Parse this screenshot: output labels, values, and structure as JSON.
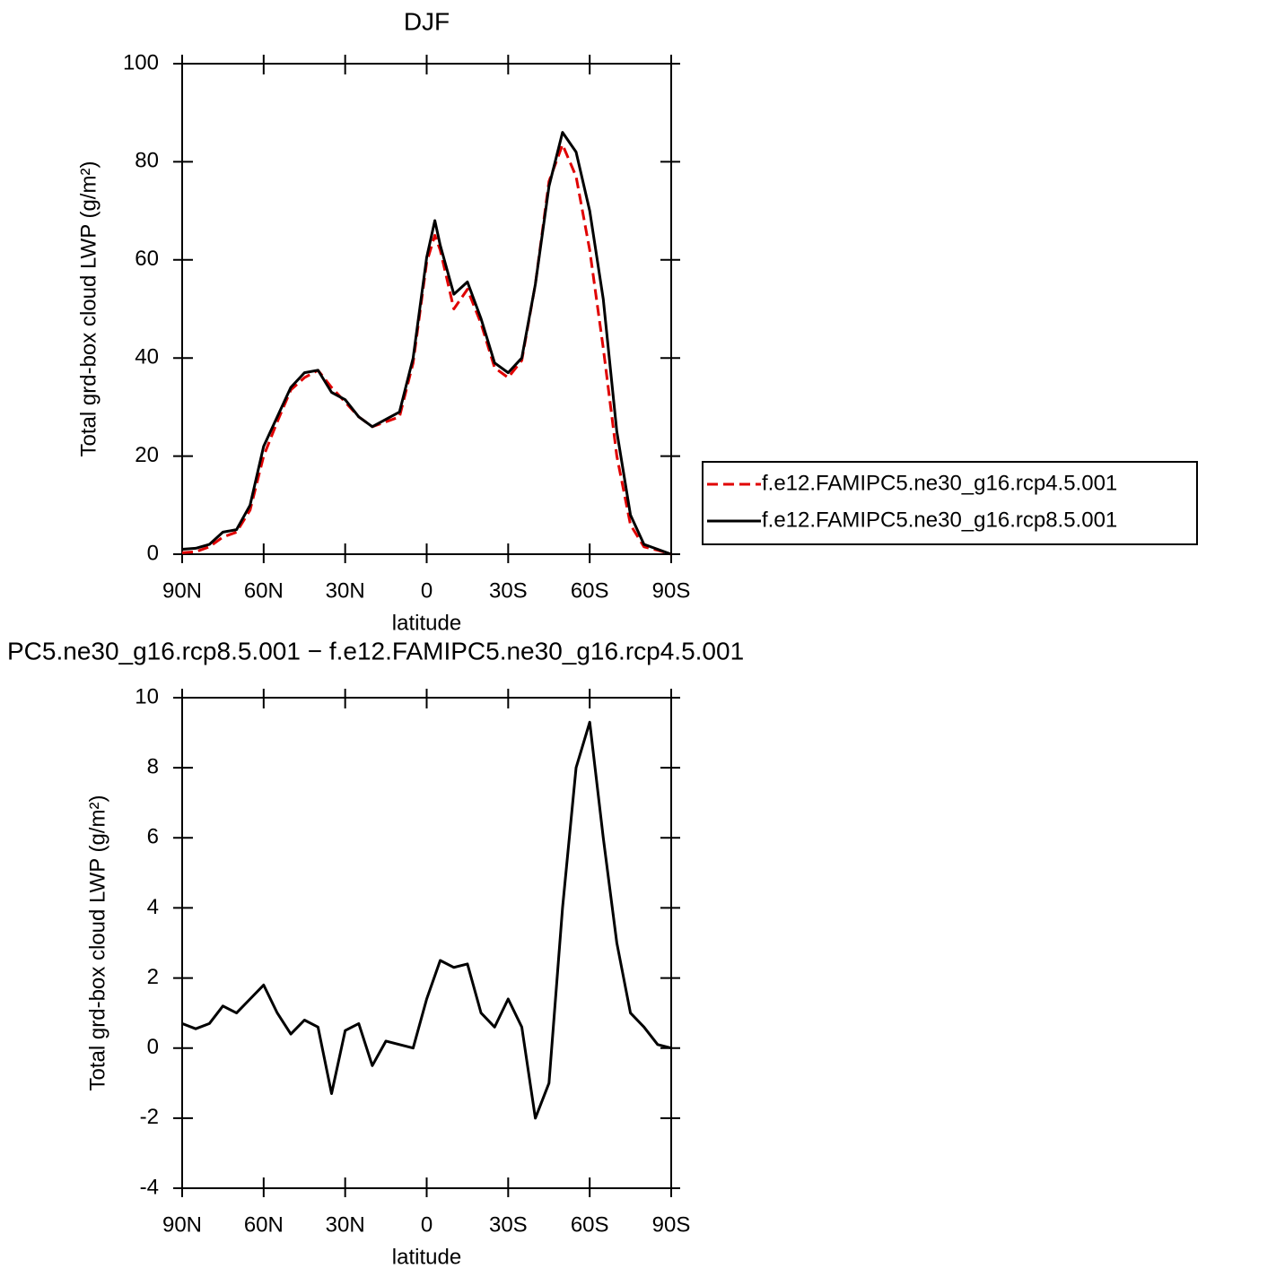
{
  "chart_data": [
    {
      "type": "line",
      "title": "DJF",
      "xlabel": "latitude",
      "ylabel": "Total grd-box cloud LWP (g/m²)",
      "x": [
        90,
        85,
        80,
        75,
        70,
        65,
        60,
        55,
        50,
        45,
        40,
        35,
        30,
        25,
        20,
        15,
        10,
        5,
        0,
        -3,
        -5,
        -10,
        -15,
        -20,
        -25,
        -30,
        -35,
        -40,
        -45,
        -50,
        -55,
        -60,
        -65,
        -70,
        -75,
        -80,
        -85,
        -90
      ],
      "series": [
        {
          "name": "f.e12.FAMIPC5.ne30_g16.rcp4.5.001",
          "color": "#e00000",
          "dash": true,
          "values": [
            0.3,
            0.5,
            1.5,
            3.5,
            4.5,
            9,
            20,
            27,
            33.5,
            36,
            37.5,
            34,
            31,
            28,
            26,
            27,
            28,
            39,
            59.5,
            65,
            62,
            50,
            54,
            47,
            38,
            36,
            39.5,
            55,
            76,
            83.5,
            77,
            62,
            42,
            20,
            6,
            1.5,
            0.8,
            0
          ]
        },
        {
          "name": "f.e12.FAMIPC5.ne30_g16.rcp8.5.001",
          "color": "#000000",
          "dash": false,
          "values": [
            1,
            1.2,
            2,
            4.5,
            5,
            10,
            22,
            28,
            34,
            37,
            37.5,
            33,
            31.5,
            28,
            26,
            27.5,
            29,
            40,
            60.5,
            68,
            63,
            53,
            55.5,
            48,
            39,
            37,
            40,
            55,
            75,
            86,
            82,
            70,
            52,
            25,
            8,
            2,
            1,
            0
          ]
        }
      ],
      "xlim": [
        90,
        -90
      ],
      "xticks": [
        {
          "value": 90,
          "label": "90N"
        },
        {
          "value": 60,
          "label": "60N"
        },
        {
          "value": 30,
          "label": "30N"
        },
        0,
        {
          "value": -30,
          "label": "30S"
        },
        {
          "value": -60,
          "label": "60S"
        },
        {
          "value": -90,
          "label": "90S"
        }
      ],
      "ylim": [
        0,
        100
      ],
      "yticks": [
        0,
        20,
        40,
        60,
        80,
        100
      ],
      "legend": "right"
    },
    {
      "type": "line",
      "title": "PC5.ne30_g16.rcp8.5.001 − f.e12.FAMIPC5.ne30_g16.rcp4.5.001",
      "xlabel": "latitude",
      "ylabel": "Total grd-box cloud LWP (g/m²)",
      "x": [
        90,
        85,
        80,
        75,
        70,
        65,
        60,
        55,
        50,
        45,
        40,
        35,
        30,
        25,
        20,
        15,
        10,
        5,
        0,
        -5,
        -10,
        -15,
        -20,
        -25,
        -30,
        -35,
        -40,
        -45,
        -50,
        -55,
        -60,
        -65,
        -70,
        -75,
        -80,
        -85,
        -90
      ],
      "series": [
        {
          "color": "#000000",
          "dash": false,
          "values": [
            0.7,
            0.55,
            0.7,
            1.2,
            1.0,
            1.4,
            1.8,
            1.0,
            0.4,
            0.8,
            0.6,
            -1.3,
            0.5,
            0.7,
            -0.5,
            0.2,
            0.1,
            0,
            1.4,
            2.5,
            2.3,
            2.4,
            1.0,
            0.6,
            1.4,
            0.6,
            -2.0,
            -1.0,
            4.0,
            8.0,
            9.3,
            6.0,
            3.0,
            1.0,
            0.6,
            0.1,
            0
          ]
        }
      ],
      "xlim": [
        90,
        -90
      ],
      "xticks": [
        {
          "value": 90,
          "label": "90N"
        },
        {
          "value": 60,
          "label": "60N"
        },
        {
          "value": 30,
          "label": "30N"
        },
        0,
        {
          "value": -30,
          "label": "30S"
        },
        {
          "value": -60,
          "label": "60S"
        },
        {
          "value": -90,
          "label": "90S"
        }
      ],
      "ylim": [
        -4,
        10
      ],
      "yticks": [
        -4,
        -2,
        0,
        2,
        4,
        6,
        8,
        10
      ]
    }
  ]
}
